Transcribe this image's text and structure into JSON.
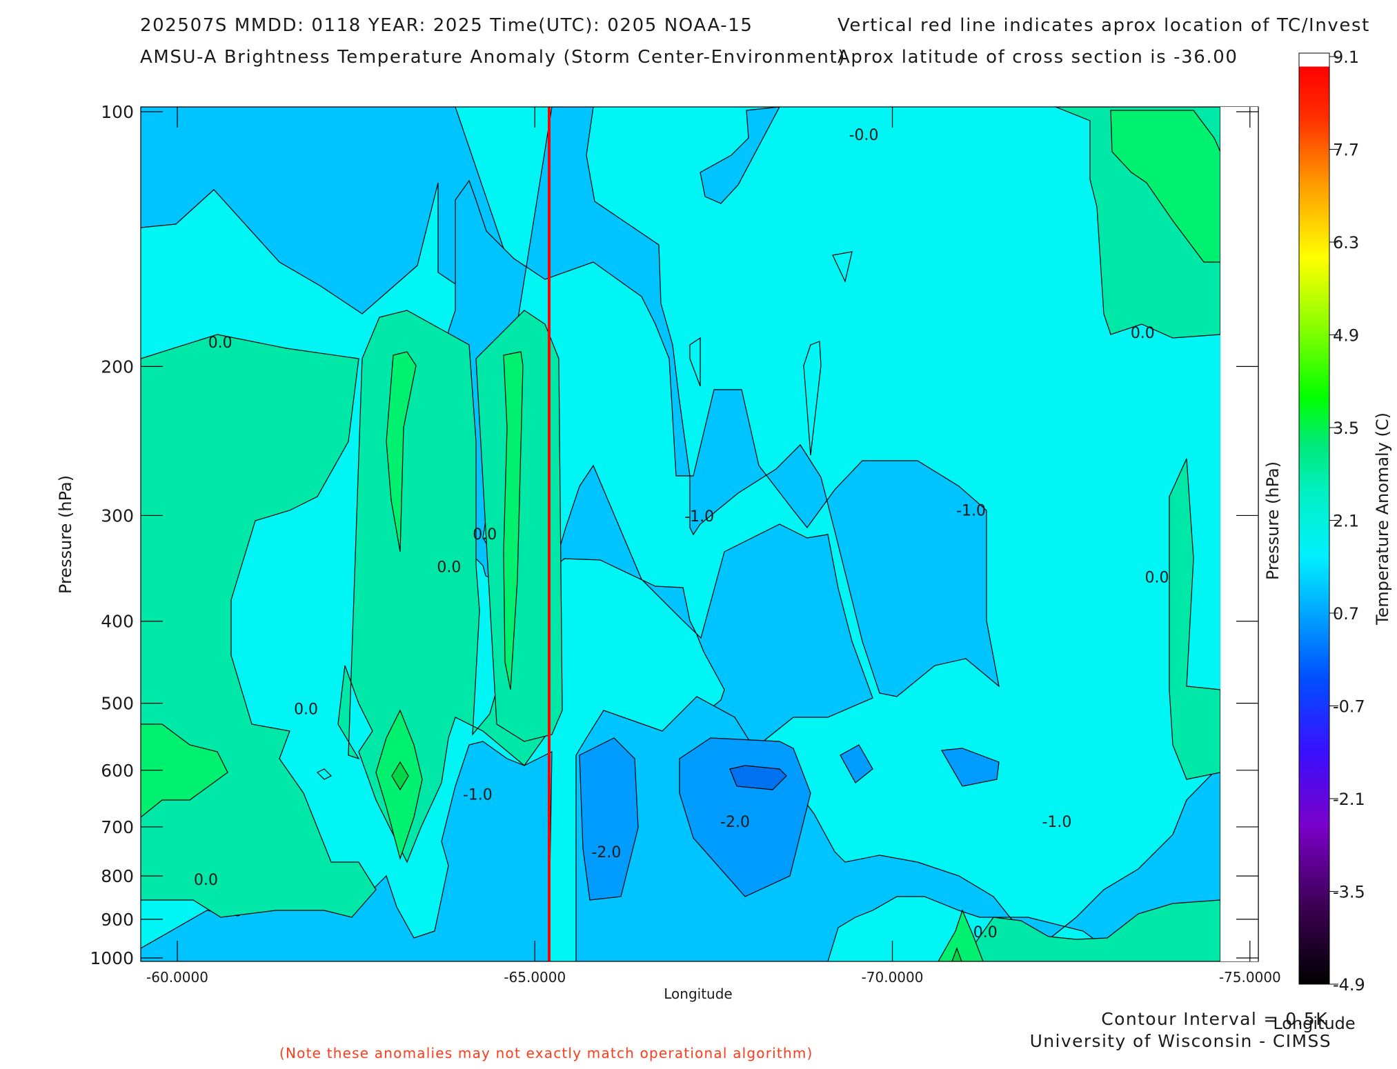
{
  "header": {
    "line1_left": "202507S  MMDD: 0118 YEAR: 2025 Time(UTC): 0205 NOAA-15",
    "line2_left": "AMSU-A Brightness Temperature Anomaly (Storm Center-Environment)",
    "line1_right": "Vertical red line indicates aprox location of TC/Invest",
    "line2_right": "Aprox latitude of cross section is -36.00"
  },
  "footer": {
    "contour_interval": "Contour Interval = 0.5K",
    "credit": "University of Wisconsin - CIMSS",
    "note": "(Note these anomalies may not exactly match operational algorithm)"
  },
  "chart_data": {
    "type": "heatmap",
    "xlabel": "Longitude",
    "ylabel": "Pressure (hPa)",
    "ylabel_right": "Pressure (hPa)",
    "xlabel_right": "Longitude",
    "x_ticks": [
      "-60.0000",
      "-65.0000",
      "-70.0000",
      "-75.0000"
    ],
    "x_tick_values": [
      -60,
      -65,
      -70,
      -75
    ],
    "xlim": [
      -59.5,
      -75.0
    ],
    "y_ticks": [
      "100",
      "200",
      "300",
      "400",
      "500",
      "600",
      "700",
      "800",
      "900",
      "1000"
    ],
    "y_tick_values": [
      100,
      200,
      300,
      400,
      500,
      600,
      700,
      800,
      900,
      1000
    ],
    "ylim": [
      1000,
      100
    ],
    "storm_longitude": -65.2,
    "storm_line_color": "#ff0000",
    "contour_labels": [
      {
        "text": "0.0",
        "lon": -60.6,
        "p": 190
      },
      {
        "text": "0.0",
        "lon": -64.3,
        "p": 320
      },
      {
        "text": "0.0",
        "lon": -63.8,
        "p": 350
      },
      {
        "text": "0.0",
        "lon": -61.8,
        "p": 515
      },
      {
        "text": "0.0",
        "lon": -60.4,
        "p": 820
      },
      {
        "text": "-1.0",
        "lon": -64.2,
        "p": 650
      },
      {
        "text": "-2.0",
        "lon": -66.0,
        "p": 760
      },
      {
        "text": "-1.0",
        "lon": -67.3,
        "p": 305
      },
      {
        "text": "-2.0",
        "lon": -67.8,
        "p": 700
      },
      {
        "text": "-0.0",
        "lon": -69.6,
        "p": 108
      },
      {
        "text": "-1.0",
        "lon": -71.1,
        "p": 300
      },
      {
        "text": "0.0",
        "lon": -73.5,
        "p": 185
      },
      {
        "text": "0.0",
        "lon": -73.7,
        "p": 360
      },
      {
        "text": "-1.0",
        "lon": -72.3,
        "p": 700
      },
      {
        "text": "0.0",
        "lon": -71.3,
        "p": 945
      }
    ],
    "colorbar": {
      "label": "Temperature Anomaly (C)",
      "ticks": [
        "9.1",
        "7.7",
        "6.3",
        "4.9",
        "3.5",
        "2.1",
        "0.7",
        "-0.7",
        "-2.1",
        "-3.5",
        "-4.9"
      ],
      "min": -4.9,
      "max": 9.1
    }
  }
}
